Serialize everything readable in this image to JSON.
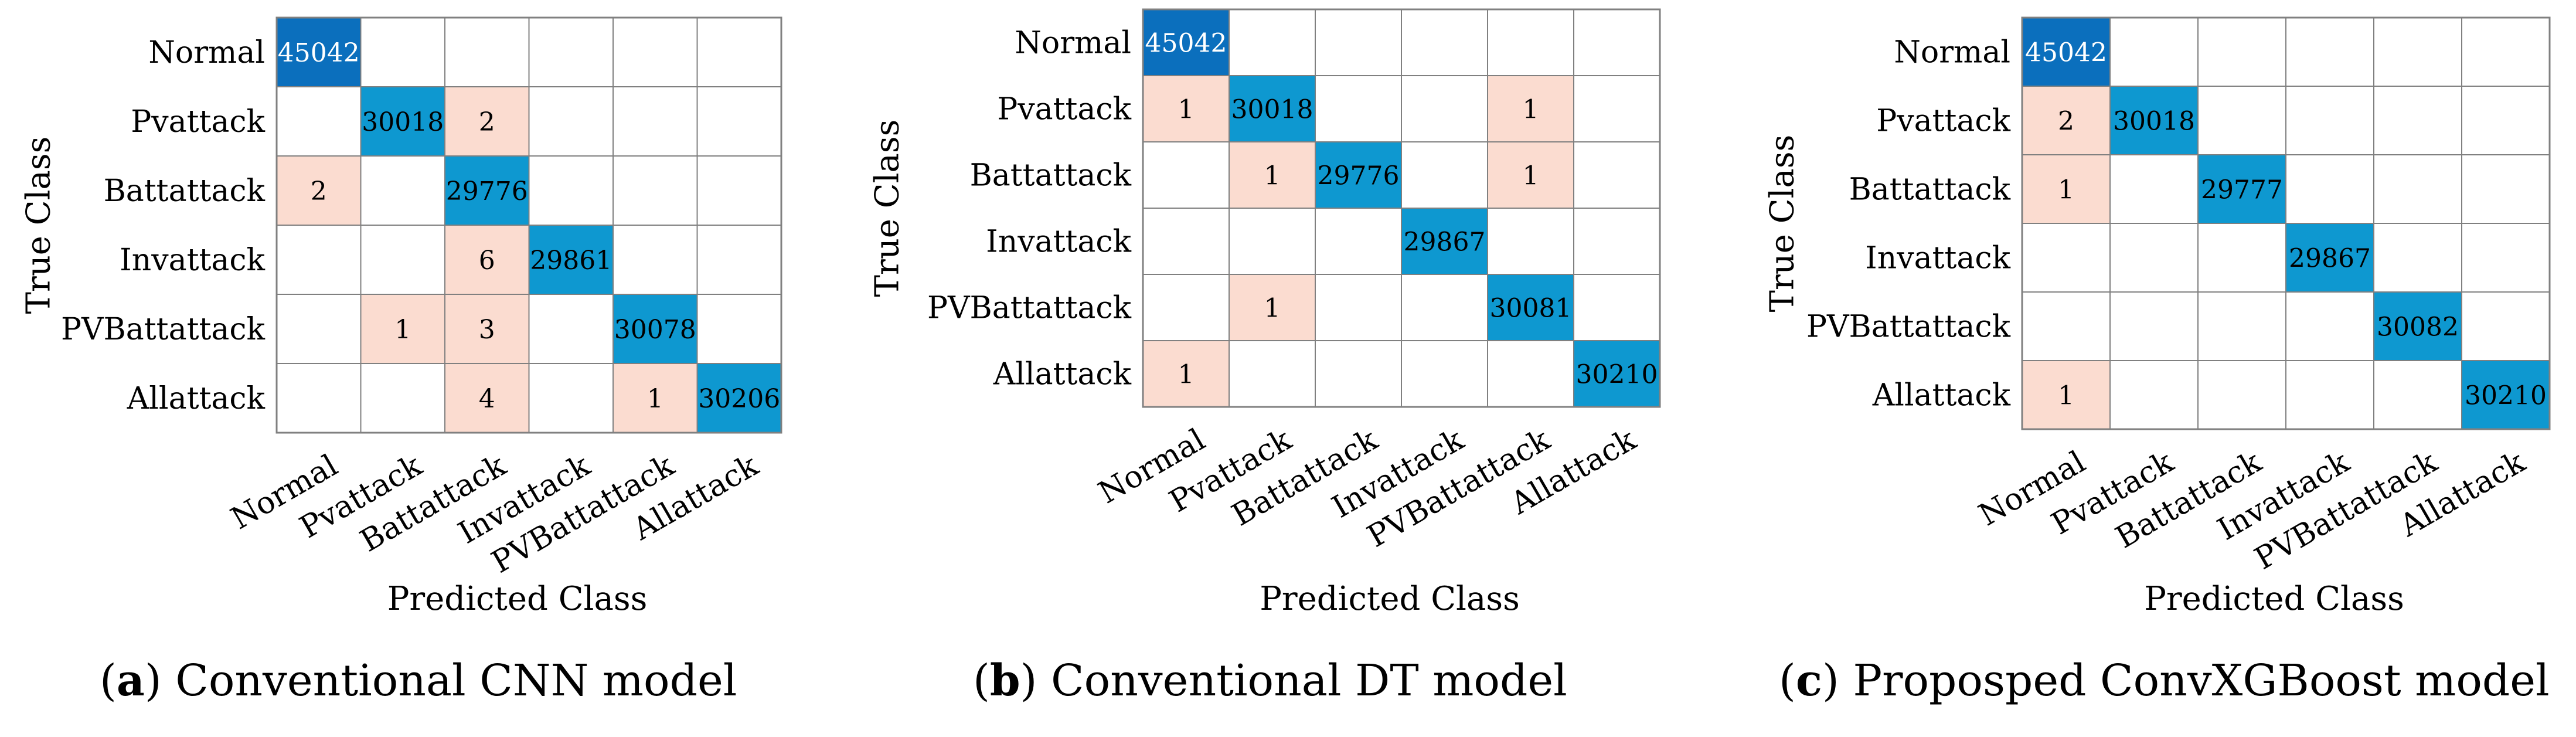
{
  "chart_data": [
    {
      "type": "heatmap",
      "title": "",
      "ylabel": "True Class",
      "xlabel": "Predicted Class",
      "classes": [
        "Normal",
        "Pvattack",
        "Battattack",
        "Invattack",
        "PVBattattack",
        "Allattack"
      ],
      "matrix": [
        [
          45042,
          null,
          null,
          null,
          null,
          null
        ],
        [
          null,
          30018,
          2,
          null,
          null,
          null
        ],
        [
          2,
          null,
          29776,
          null,
          null,
          null
        ],
        [
          null,
          null,
          6,
          29861,
          null,
          null
        ],
        [
          null,
          1,
          3,
          null,
          30078,
          null
        ],
        [
          null,
          null,
          4,
          null,
          1,
          30206
        ]
      ],
      "caption_letter": "a",
      "caption_text": " Conventional CNN model"
    },
    {
      "type": "heatmap",
      "title": "",
      "ylabel": "True Class",
      "xlabel": "Predicted Class",
      "classes": [
        "Normal",
        "Pvattack",
        "Battattack",
        "Invattack",
        "PVBattattack",
        "Allattack"
      ],
      "matrix": [
        [
          45042,
          null,
          null,
          null,
          null,
          null
        ],
        [
          1,
          30018,
          null,
          null,
          1,
          null
        ],
        [
          null,
          1,
          29776,
          null,
          1,
          null
        ],
        [
          null,
          null,
          null,
          29867,
          null,
          null
        ],
        [
          null,
          1,
          null,
          null,
          30081,
          null
        ],
        [
          1,
          null,
          null,
          null,
          null,
          30210
        ]
      ],
      "caption_letter": "b",
      "caption_text": " Conventional DT model"
    },
    {
      "type": "heatmap",
      "title": "",
      "ylabel": "True Class",
      "xlabel": "Predicted Class",
      "classes": [
        "Normal",
        "Pvattack",
        "Battattack",
        "Invattack",
        "PVBattattack",
        "Allattack"
      ],
      "matrix": [
        [
          45042,
          null,
          null,
          null,
          null,
          null
        ],
        [
          2,
          30018,
          null,
          null,
          null,
          null
        ],
        [
          1,
          null,
          29777,
          null,
          null,
          null
        ],
        [
          null,
          null,
          null,
          29867,
          null,
          null
        ],
        [
          null,
          null,
          null,
          null,
          30082,
          null
        ],
        [
          1,
          null,
          null,
          null,
          null,
          30210
        ]
      ],
      "caption_letter": "c",
      "caption_text": " Proposped ConvXGBoost model"
    }
  ],
  "colors": {
    "diag_max": "#0b6fbd",
    "diag": "#0e98d0",
    "offdiag": "#fbdcd0",
    "grid": "#808080",
    "bg": "#ffffff"
  }
}
